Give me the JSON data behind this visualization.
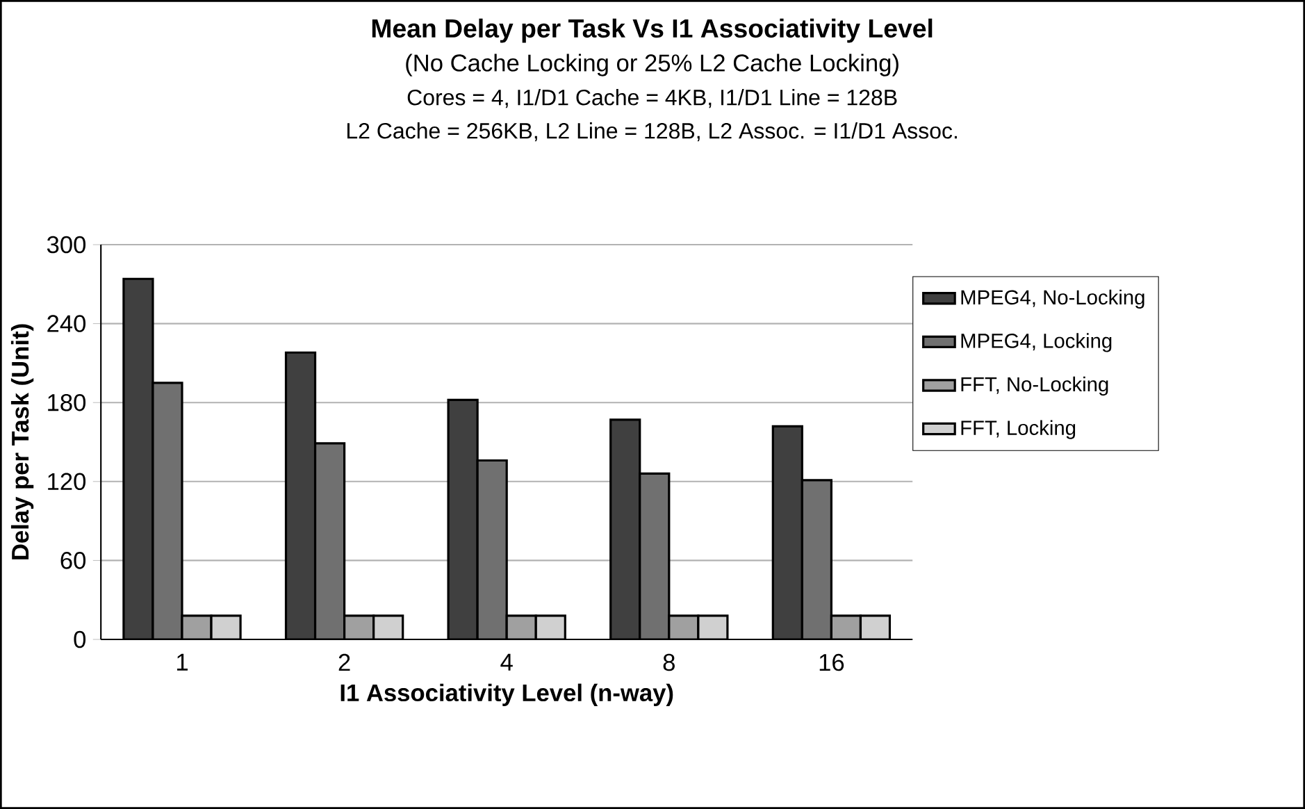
{
  "chart_data": {
    "type": "bar",
    "title": "Mean Delay per Task Vs I1 Associativity Level",
    "subtitle": "(No Cache Locking or 25% L2 Cache Locking)",
    "annotations": [
      "Cores = 4, I1/D1 Cache = 4KB, I1/D1 Line = 128B",
      "L2 Cache = 256KB, L2 Line = 128B, L2 Assoc. = I1/D1 Assoc."
    ],
    "xlabel": "I1 Associativity Level (n-way)",
    "ylabel": "Delay per Task (Unit)",
    "categories": [
      "1",
      "2",
      "4",
      "8",
      "16"
    ],
    "series": [
      {
        "name": "MPEG4, No-Locking",
        "color": "#404040",
        "values": [
          274,
          218,
          182,
          167,
          162
        ]
      },
      {
        "name": "MPEG4, Locking",
        "color": "#707070",
        "values": [
          195,
          149,
          136,
          126,
          121
        ]
      },
      {
        "name": "FFT, No-Locking",
        "color": "#a0a0a0",
        "values": [
          18,
          18,
          18,
          18,
          18
        ]
      },
      {
        "name": "FFT, Locking",
        "color": "#d0d0d0",
        "values": [
          18,
          18,
          18,
          18,
          18
        ]
      }
    ],
    "ylim": [
      0,
      300
    ],
    "yticks": [
      0,
      60,
      120,
      180,
      240,
      300
    ],
    "grid": "y",
    "legend": "right"
  }
}
